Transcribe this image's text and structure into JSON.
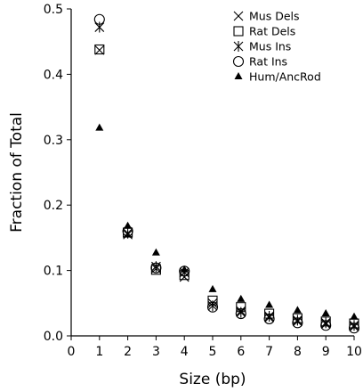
{
  "chart_data": {
    "type": "scatter",
    "xlabel": "Size (bp)",
    "ylabel": "Fraction of Total",
    "xlim": [
      0,
      10
    ],
    "ylim": [
      0,
      0.5
    ],
    "x_ticks": [
      "0",
      "1",
      "2",
      "3",
      "4",
      "5",
      "6",
      "7",
      "8",
      "9",
      "10"
    ],
    "y_ticks": [
      "0.0",
      "0.1",
      "0.2",
      "0.3",
      "0.4",
      "0.5"
    ],
    "grid": false,
    "legend_position": "top-right",
    "x": [
      1,
      2,
      3,
      4,
      5,
      6,
      7,
      8,
      9,
      10
    ],
    "series": [
      {
        "name": "Mus Dels",
        "marker": "x",
        "values": [
          0.437,
          0.155,
          0.103,
          0.09,
          0.05,
          0.038,
          0.028,
          0.022,
          0.018,
          0.014
        ]
      },
      {
        "name": "Rat Dels",
        "marker": "square",
        "values": [
          0.438,
          0.158,
          0.101,
          0.093,
          0.054,
          0.044,
          0.034,
          0.027,
          0.022,
          0.019
        ]
      },
      {
        "name": "Mus Ins",
        "marker": "asterisk",
        "values": [
          0.472,
          0.157,
          0.106,
          0.097,
          0.046,
          0.036,
          0.03,
          0.024,
          0.02,
          0.016
        ]
      },
      {
        "name": "Rat Ins",
        "marker": "circle",
        "values": [
          0.484,
          0.16,
          0.104,
          0.099,
          0.044,
          0.034,
          0.026,
          0.02,
          0.016,
          0.012
        ]
      },
      {
        "name": "Hum/AncRod",
        "marker": "triangle",
        "values": [
          0.318,
          0.168,
          0.127,
          0.101,
          0.071,
          0.056,
          0.047,
          0.039,
          0.034,
          0.029
        ]
      }
    ]
  }
}
